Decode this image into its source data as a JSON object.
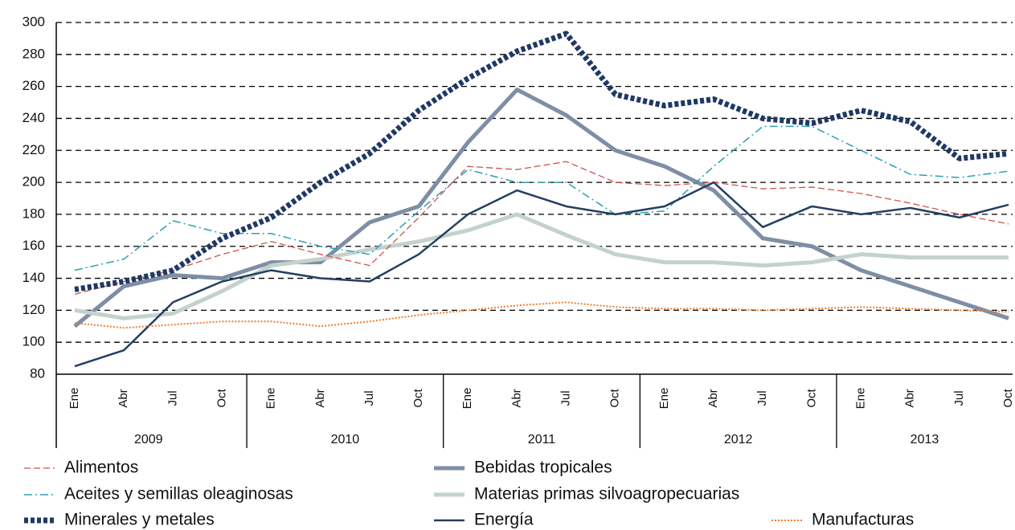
{
  "chart_data": {
    "type": "line",
    "categories": [
      "Ene",
      "Abr",
      "Jul",
      "Oct",
      "Ene",
      "Abr",
      "Jul",
      "Oct",
      "Ene",
      "Abr",
      "Jul",
      "Oct",
      "Ene",
      "Abr",
      "Jul",
      "Oct",
      "Ene",
      "Abr",
      "Jul",
      "Oct"
    ],
    "years": [
      "2009",
      "2010",
      "2011",
      "2012",
      "2013"
    ],
    "ylim": [
      80,
      300
    ],
    "yticks": [
      80,
      100,
      120,
      140,
      160,
      180,
      200,
      220,
      240,
      260,
      280,
      300
    ],
    "grid": true,
    "series": [
      {
        "name": "Alimentos",
        "color": "#d0524c",
        "style": "dashed",
        "values": [
          130,
          138,
          145,
          155,
          163,
          155,
          148,
          178,
          210,
          208,
          213,
          200,
          198,
          200,
          196,
          197,
          193,
          187,
          180,
          174
        ]
      },
      {
        "name": "Aceites y semillas oleaginosas",
        "color": "#2b9fb2",
        "style": "dash-dot",
        "values": [
          145,
          152,
          176,
          168,
          168,
          160,
          155,
          182,
          208,
          200,
          200,
          180,
          182,
          210,
          235,
          235,
          220,
          205,
          203,
          207
        ]
      },
      {
        "name": "Minerales y metales",
        "color": "#1f3864",
        "style": "heavy-dotted",
        "values": [
          133,
          138,
          145,
          165,
          178,
          200,
          218,
          245,
          265,
          282,
          293,
          255,
          248,
          252,
          240,
          237,
          245,
          238,
          215,
          218
        ]
      },
      {
        "name": "Bebidas tropicales",
        "color": "#7f8ea6",
        "style": "heavy",
        "values": [
          110,
          135,
          142,
          140,
          150,
          150,
          175,
          185,
          225,
          258,
          242,
          220,
          210,
          195,
          165,
          160,
          145,
          135,
          125,
          115
        ]
      },
      {
        "name": "Materias primas silvoagropecuarias",
        "color": "#c3d2cc",
        "style": "heavy",
        "values": [
          120,
          115,
          118,
          132,
          148,
          152,
          158,
          163,
          170,
          180,
          167,
          155,
          150,
          150,
          148,
          150,
          155,
          153,
          153,
          153
        ]
      },
      {
        "name": "Energía",
        "color": "#243f60",
        "style": "solid",
        "values": [
          85,
          95,
          125,
          138,
          145,
          140,
          138,
          155,
          180,
          195,
          185,
          180,
          185,
          200,
          172,
          185,
          180,
          184,
          178,
          186
        ]
      },
      {
        "name": "Manufacturas",
        "color": "#f07d2a",
        "style": "dotted",
        "values": [
          112,
          109,
          111,
          113,
          113,
          110,
          113,
          117,
          120,
          123,
          125,
          122,
          121,
          121,
          120,
          121,
          122,
          121,
          120,
          119
        ]
      }
    ]
  }
}
